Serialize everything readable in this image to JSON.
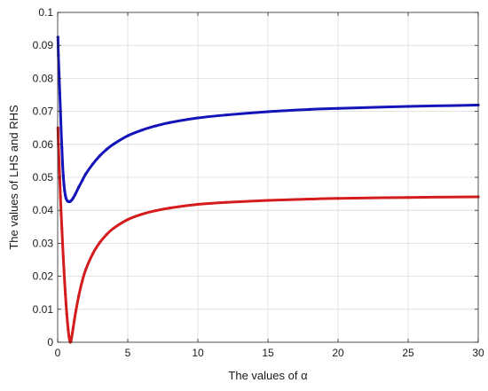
{
  "chart_data": {
    "type": "line",
    "title": "",
    "xlabel": "The values of α",
    "ylabel": "The values of LHS and RHS",
    "xlim": [
      0,
      30
    ],
    "ylim": [
      0,
      0.1
    ],
    "grid": true,
    "legend": "none",
    "x_ticks": [
      0,
      5,
      10,
      15,
      20,
      25,
      30
    ],
    "x_tick_labels": [
      "0",
      "5",
      "10",
      "15",
      "20",
      "25",
      "30"
    ],
    "y_ticks": [
      0,
      0.01,
      0.02,
      0.03,
      0.04,
      0.05,
      0.06,
      0.07,
      0.08,
      0.09,
      0.1
    ],
    "y_tick_labels": [
      "0",
      "0.01",
      "0.02",
      "0.03",
      "0.04",
      "0.05",
      "0.06",
      "0.07",
      "0.08",
      "0.09",
      "0.1"
    ],
    "series": [
      {
        "color": "#1414b8",
        "marker": "dot",
        "x": [
          0.02,
          0.05,
          0.1,
          0.15,
          0.2,
          0.25,
          0.3,
          0.35,
          0.4,
          0.45,
          0.5,
          0.55,
          0.6,
          0.7,
          0.8,
          0.9,
          1.0,
          1.1,
          1.25,
          1.5,
          1.75,
          2.0,
          2.5,
          3.0,
          3.5,
          4.0,
          5.0,
          6.0,
          7.0,
          8.0,
          10.0,
          12.0,
          15.0,
          18.0,
          20.0,
          25.0,
          30.0
        ],
        "values": [
          0.0925,
          0.087,
          0.0815,
          0.0755,
          0.07,
          0.064,
          0.059,
          0.054,
          0.0505,
          0.0478,
          0.0458,
          0.0445,
          0.0436,
          0.0428,
          0.0426,
          0.0427,
          0.0431,
          0.0437,
          0.0448,
          0.047,
          0.049,
          0.051,
          0.054,
          0.0565,
          0.0585,
          0.0601,
          0.0626,
          0.0643,
          0.0656,
          0.0666,
          0.068,
          0.0689,
          0.0699,
          0.0706,
          0.0709,
          0.0715,
          0.0719
        ]
      },
      {
        "color": "#d41c1c",
        "marker": "dot",
        "x": [
          0.02,
          0.05,
          0.1,
          0.15,
          0.2,
          0.25,
          0.3,
          0.35,
          0.4,
          0.45,
          0.5,
          0.55,
          0.6,
          0.65,
          0.7,
          0.75,
          0.8,
          0.85,
          0.9,
          0.95,
          1.0,
          1.05,
          1.1,
          1.2,
          1.3,
          1.5,
          1.75,
          2.0,
          2.5,
          3.0,
          3.5,
          4.0,
          5.0,
          6.0,
          7.0,
          8.0,
          10.0,
          12.0,
          15.0,
          18.0,
          20.0,
          25.0,
          30.0
        ],
        "values": [
          0.065,
          0.06,
          0.055,
          0.0495,
          0.044,
          0.039,
          0.0345,
          0.03,
          0.0258,
          0.0218,
          0.018,
          0.0146,
          0.0114,
          0.0085,
          0.006,
          0.0038,
          0.002,
          0.0007,
          0.0,
          0.0004,
          0.0015,
          0.0028,
          0.0042,
          0.007,
          0.0095,
          0.014,
          0.0185,
          0.022,
          0.0268,
          0.0302,
          0.0327,
          0.0346,
          0.0372,
          0.0388,
          0.0399,
          0.0407,
          0.0418,
          0.0424,
          0.043,
          0.0434,
          0.0436,
          0.0439,
          0.0441
        ]
      }
    ]
  }
}
